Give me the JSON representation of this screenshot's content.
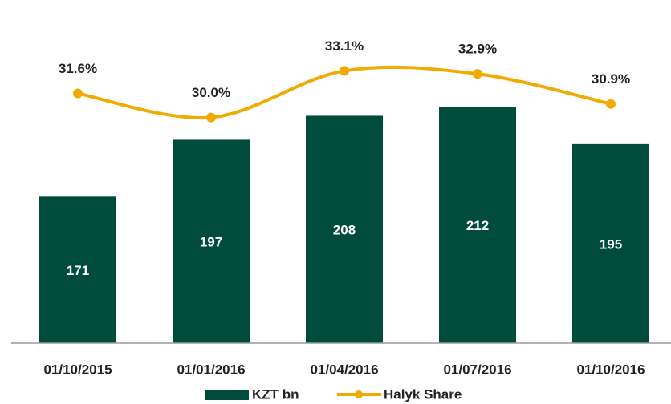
{
  "chart_data": {
    "type": "bar",
    "categories": [
      "01/10/2015",
      "01/01/2016",
      "01/04/2016",
      "01/07/2016",
      "01/10/2016"
    ],
    "series": [
      {
        "name": "KZT bn",
        "type": "bar",
        "color": "#004c3c",
        "values": [
          171,
          197,
          208,
          212,
          195
        ]
      },
      {
        "name": "Halyk Share",
        "type": "line",
        "axis": "y2",
        "color": "#f2a900",
        "values": [
          31.6,
          30.0,
          33.1,
          32.9,
          30.9
        ],
        "value_labels": [
          "31.6%",
          "30.0%",
          "33.1%",
          "32.9%",
          "30.9%"
        ]
      }
    ],
    "ylim": [
      104,
      254
    ],
    "y2lim": [
      15,
      36.8
    ],
    "legend": "bottom"
  }
}
